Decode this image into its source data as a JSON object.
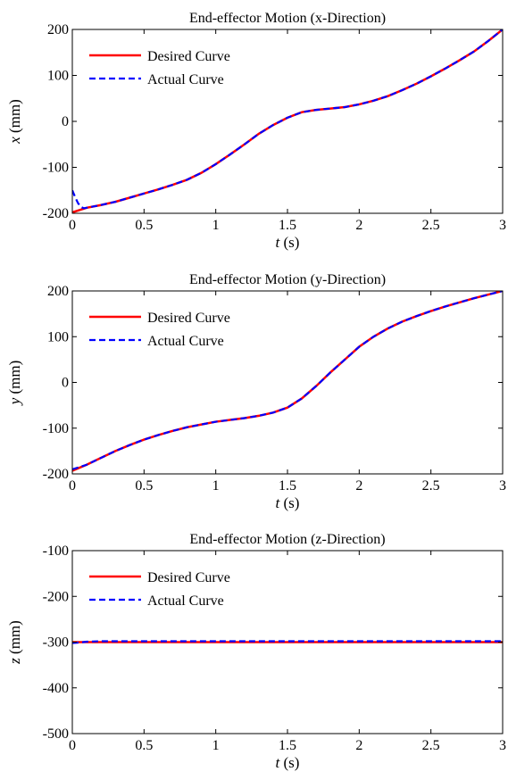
{
  "chart_data": [
    {
      "type": "line",
      "title": "End-effector Motion (x-Direction)",
      "xlabel_var": "t",
      "xlabel_unit": " (s)",
      "ylabel_var": "x",
      "ylabel_unit": " (mm)",
      "xlim": [
        0,
        3
      ],
      "ylim": [
        -200,
        200
      ],
      "xticks": [
        0,
        0.5,
        1,
        1.5,
        2,
        2.5,
        3
      ],
      "xtick_labels": [
        "0",
        "0.5",
        "1",
        "1.5",
        "2",
        "2.5",
        "3"
      ],
      "yticks": [
        -200,
        -100,
        0,
        100,
        200
      ],
      "ytick_labels": [
        "-200",
        "-100",
        "0",
        "100",
        "200"
      ],
      "grid": false,
      "legend_position": "top-left",
      "series": [
        {
          "name": "Desired Curve",
          "color": "#ff0000",
          "style": "solid",
          "x": [
            0,
            0.1,
            0.2,
            0.3,
            0.4,
            0.5,
            0.6,
            0.7,
            0.8,
            0.9,
            1.0,
            1.1,
            1.2,
            1.3,
            1.4,
            1.5,
            1.6,
            1.7,
            1.8,
            1.9,
            2.0,
            2.1,
            2.2,
            2.3,
            2.4,
            2.5,
            2.6,
            2.7,
            2.8,
            2.9,
            3.0
          ],
          "y": [
            -198,
            -188,
            -182,
            -175,
            -166,
            -157,
            -148,
            -138,
            -127,
            -112,
            -93,
            -72,
            -50,
            -27,
            -8,
            8,
            20,
            25,
            28,
            31,
            37,
            45,
            55,
            68,
            82,
            98,
            115,
            133,
            152,
            175,
            200
          ]
        },
        {
          "name": "Actual Curve",
          "color": "#0000ff",
          "style": "dashed",
          "x": [
            0,
            0.02,
            0.04,
            0.06,
            0.08,
            0.1,
            0.2,
            0.3,
            0.4,
            0.5,
            0.6,
            0.7,
            0.8,
            0.9,
            1.0,
            1.1,
            1.2,
            1.3,
            1.4,
            1.5,
            1.6,
            1.7,
            1.8,
            1.9,
            2.0,
            2.1,
            2.2,
            2.3,
            2.4,
            2.5,
            2.6,
            2.7,
            2.8,
            2.9,
            3.0
          ],
          "y": [
            -150,
            -165,
            -178,
            -186,
            -189,
            -188,
            -182,
            -175,
            -166,
            -157,
            -148,
            -138,
            -127,
            -112,
            -93,
            -72,
            -50,
            -27,
            -8,
            8,
            20,
            25,
            28,
            31,
            37,
            45,
            55,
            68,
            82,
            98,
            115,
            133,
            152,
            175,
            200
          ]
        }
      ]
    },
    {
      "type": "line",
      "title": "End-effector Motion (y-Direction)",
      "xlabel_var": "t",
      "xlabel_unit": " (s)",
      "ylabel_var": "y",
      "ylabel_unit": " (mm)",
      "xlim": [
        0,
        3
      ],
      "ylim": [
        -200,
        200
      ],
      "xticks": [
        0,
        0.5,
        1,
        1.5,
        2,
        2.5,
        3
      ],
      "xtick_labels": [
        "0",
        "0.5",
        "1",
        "1.5",
        "2",
        "2.5",
        "3"
      ],
      "yticks": [
        -200,
        -100,
        0,
        100,
        200
      ],
      "ytick_labels": [
        "-200",
        "-100",
        "0",
        "100",
        "200"
      ],
      "grid": false,
      "legend_position": "top-left",
      "series": [
        {
          "name": "Desired Curve",
          "color": "#ff0000",
          "style": "solid",
          "x": [
            0,
            0.1,
            0.2,
            0.3,
            0.4,
            0.5,
            0.6,
            0.7,
            0.8,
            0.9,
            1.0,
            1.1,
            1.2,
            1.3,
            1.4,
            1.5,
            1.6,
            1.7,
            1.8,
            1.9,
            2.0,
            2.1,
            2.2,
            2.3,
            2.4,
            2.5,
            2.6,
            2.7,
            2.8,
            2.9,
            3.0
          ],
          "y": [
            -193,
            -180,
            -165,
            -150,
            -137,
            -125,
            -115,
            -106,
            -98,
            -92,
            -86,
            -82,
            -78,
            -73,
            -66,
            -55,
            -35,
            -8,
            22,
            50,
            78,
            100,
            118,
            133,
            145,
            156,
            166,
            175,
            184,
            192,
            200
          ]
        },
        {
          "name": "Actual Curve",
          "color": "#0000ff",
          "style": "dashed",
          "x": [
            0,
            0.1,
            0.2,
            0.3,
            0.4,
            0.5,
            0.6,
            0.7,
            0.8,
            0.9,
            1.0,
            1.1,
            1.2,
            1.3,
            1.4,
            1.5,
            1.6,
            1.7,
            1.8,
            1.9,
            2.0,
            2.1,
            2.2,
            2.3,
            2.4,
            2.5,
            2.6,
            2.7,
            2.8,
            2.9,
            3.0
          ],
          "y": [
            -190,
            -180,
            -165,
            -150,
            -137,
            -125,
            -115,
            -106,
            -98,
            -92,
            -86,
            -82,
            -78,
            -73,
            -66,
            -55,
            -35,
            -8,
            22,
            50,
            78,
            100,
            118,
            133,
            145,
            156,
            166,
            175,
            184,
            192,
            200
          ]
        }
      ]
    },
    {
      "type": "line",
      "title": "End-effector Motion (z-Direction)",
      "xlabel_var": "t",
      "xlabel_unit": " (s)",
      "ylabel_var": "z",
      "ylabel_unit": " (mm)",
      "xlim": [
        0,
        3
      ],
      "ylim": [
        -500,
        -100
      ],
      "xticks": [
        0,
        0.5,
        1,
        1.5,
        2,
        2.5,
        3
      ],
      "xtick_labels": [
        "0",
        "0.5",
        "1",
        "1.5",
        "2",
        "2.5",
        "3"
      ],
      "yticks": [
        -500,
        -400,
        -300,
        -200,
        -100
      ],
      "ytick_labels": [
        "-500",
        "-400",
        "-300",
        "-200",
        "-100"
      ],
      "grid": false,
      "legend_position": "top-left",
      "series": [
        {
          "name": "Desired Curve",
          "color": "#ff0000",
          "style": "solid",
          "x": [
            0,
            3
          ],
          "y": [
            -300,
            -300
          ]
        },
        {
          "name": "Actual Curve",
          "color": "#0000ff",
          "style": "dashed",
          "x": [
            0,
            0.05,
            0.1,
            0.2,
            3.0
          ],
          "y": [
            -302,
            -301,
            -299,
            -298,
            -298
          ]
        }
      ]
    }
  ]
}
